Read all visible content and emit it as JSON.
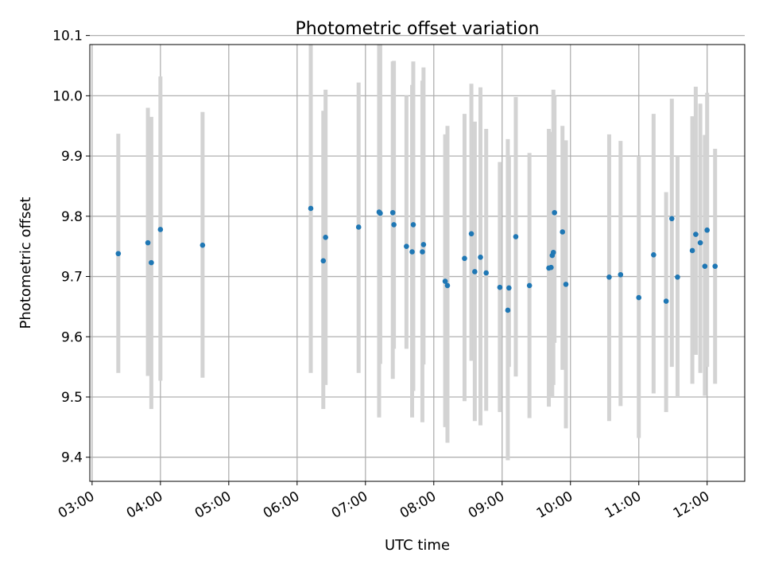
{
  "chart_data": {
    "type": "scatter",
    "title": "Photometric offset variation",
    "xlabel": "UTC time",
    "ylabel": "Photometric offset",
    "xlim": [
      "02:58",
      "12:33"
    ],
    "ylim": [
      9.36,
      10.085
    ],
    "xticks": [
      "03:00",
      "04:00",
      "05:00",
      "06:00",
      "07:00",
      "08:00",
      "09:00",
      "10:00",
      "11:00",
      "12:00"
    ],
    "yticks": [
      9.4,
      9.5,
      9.6,
      9.7,
      9.8,
      9.9,
      10.0,
      10.1
    ],
    "grid": true,
    "legend": "none",
    "colors": {
      "point": "#1f77b4",
      "errorbar": "#d3d3d3",
      "grid": "#b0b0b0"
    },
    "series": [
      {
        "x": [
          "03:23",
          "03:49",
          "03:52",
          "04:00",
          "04:37",
          "06:12",
          "06:23",
          "06:25",
          "06:54",
          "07:12",
          "07:13",
          "07:24",
          "07:25",
          "07:36",
          "07:41",
          "07:42",
          "07:50",
          "07:51",
          "08:10",
          "08:12",
          "08:27",
          "08:33",
          "08:36",
          "08:41",
          "08:46",
          "08:58",
          "09:05",
          "09:06",
          "09:12",
          "09:24",
          "09:41",
          "09:43",
          "09:44",
          "09:45",
          "09:46",
          "09:53",
          "09:56",
          "10:34",
          "10:44",
          "11:00",
          "11:13",
          "11:24",
          "11:29",
          "11:34",
          "11:47",
          "11:50",
          "11:54",
          "11:58",
          "12:00",
          "12:07"
        ],
        "y": [
          9.738,
          9.756,
          9.723,
          9.778,
          9.752,
          9.813,
          9.726,
          9.765,
          9.782,
          9.807,
          9.805,
          9.806,
          9.786,
          9.75,
          9.741,
          9.786,
          9.741,
          9.753,
          9.692,
          9.685,
          9.73,
          9.771,
          9.708,
          9.732,
          9.706,
          9.682,
          9.644,
          9.681,
          9.766,
          9.685,
          9.714,
          9.715,
          9.735,
          9.74,
          9.806,
          9.774,
          9.687,
          9.699,
          9.703,
          9.665,
          9.736,
          9.659,
          9.796,
          9.699,
          9.743,
          9.77,
          9.756,
          9.717,
          9.777,
          9.717
        ],
        "y_lower": [
          9.54,
          9.535,
          9.48,
          9.527,
          9.532,
          9.54,
          9.48,
          9.52,
          9.54,
          9.466,
          9.555,
          9.53,
          9.58,
          9.58,
          9.466,
          9.51,
          9.458,
          9.554,
          9.45,
          9.424,
          9.493,
          9.56,
          9.46,
          9.453,
          9.477,
          9.475,
          9.395,
          9.55,
          9.534,
          9.465,
          9.484,
          9.55,
          9.5,
          9.52,
          9.59,
          9.545,
          9.448,
          9.46,
          9.485,
          9.432,
          9.506,
          9.475,
          9.55,
          9.5,
          9.522,
          9.57,
          9.54,
          9.502,
          9.55,
          9.522
        ],
        "y_upper": [
          9.937,
          9.98,
          9.965,
          10.032,
          9.973,
          10.087,
          9.975,
          10.01,
          10.022,
          10.15,
          10.142,
          10.057,
          10.058,
          10.0,
          10.018,
          10.057,
          10.025,
          10.047,
          9.936,
          9.95,
          9.97,
          10.02,
          9.957,
          10.014,
          9.945,
          9.89,
          9.928,
          9.9,
          9.998,
          9.905,
          9.945,
          9.93,
          9.94,
          10.01,
          10.0,
          9.95,
          9.926,
          9.936,
          9.925,
          9.9,
          9.97,
          9.84,
          9.995,
          9.9,
          9.966,
          10.015,
          9.987,
          9.935,
          10.005,
          9.912
        ]
      }
    ]
  }
}
